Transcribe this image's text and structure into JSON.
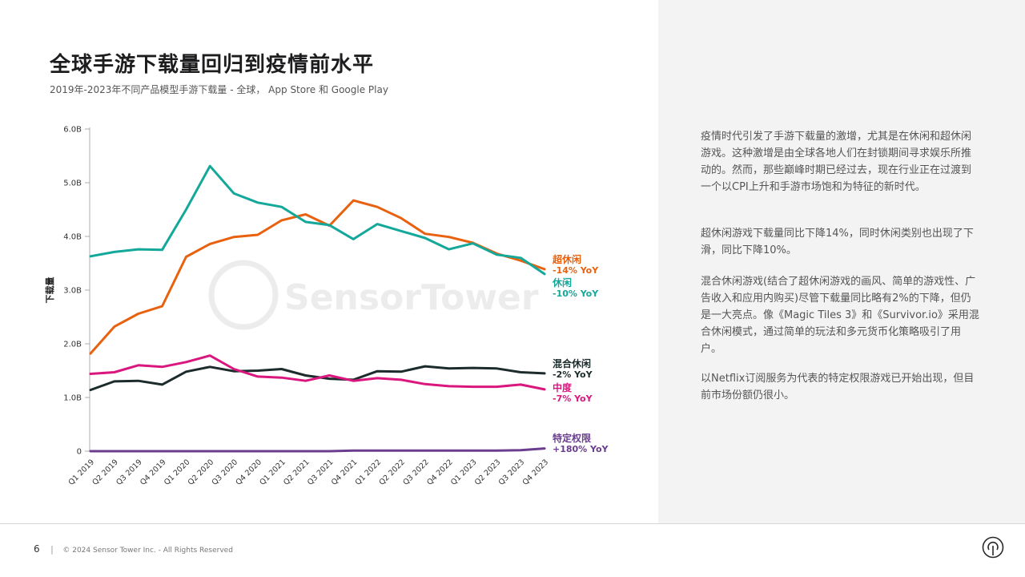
{
  "title": "全球手游下载量回归到疫情前水平",
  "subtitle": "2019年-2023年不同产品模型手游下载量 - 全球， App Store 和 Google Play",
  "watermark": "SensorTower",
  "paragraphs": [
    "疫情时代引发了手游下载量的激增，尤其是在休闲和超休闲游戏。这种激增是由全球各地人们在封锁期间寻求娱乐所推动的。然而，那些巅峰时期已经过去，现在行业正在过渡到一个以CPI上升和手游市场饱和为特征的新时代。",
    "超休闲游戏下载量同比下降14%，同时休闲类别也出现了下滑，同比下降10%。",
    "混合休闲游戏(结合了超休闲游戏的画风、简单的游戏性、广告收入和应用内购买)尽管下载量同比略有2%的下降，但仍是一大亮点。像《Magic Tiles 3》和《Survivor.io》采用混合休闲模式，通过简单的玩法和多元货币化策略吸引了用户。",
    "以Netflix订阅服务为代表的特定权限游戏已开始出现，但目前市场份额仍很小。"
  ],
  "footer": {
    "page": "6",
    "copyright": "© 2024 Sensor Tower Inc. - All Rights Reserved"
  },
  "chart_data": {
    "type": "line",
    "ylabel": "下载量",
    "xlabel": "",
    "ylim": [
      0,
      6
    ],
    "y_ticks": [
      {
        "value": 0,
        "label": "0"
      },
      {
        "value": 1,
        "label": "1.0B"
      },
      {
        "value": 2,
        "label": "2.0B"
      },
      {
        "value": 3,
        "label": "3.0B"
      },
      {
        "value": 4,
        "label": "4.0B"
      },
      {
        "value": 5,
        "label": "5.0B"
      },
      {
        "value": 6,
        "label": "6.0B"
      }
    ],
    "categories": [
      "Q1 2019",
      "Q2 2019",
      "Q3 2019",
      "Q4 2019",
      "Q1 2020",
      "Q2 2020",
      "Q3 2020",
      "Q4 2020",
      "Q1 2021",
      "Q2 2021",
      "Q3 2021",
      "Q4 2021",
      "Q1 2022",
      "Q2 2022",
      "Q3 2022",
      "Q4 2022",
      "Q1 2023",
      "Q2 2023",
      "Q3 2023",
      "Q4 2023"
    ],
    "grid": false,
    "legend": "end-of-line labels",
    "series": [
      {
        "name": "超休闲",
        "yoy": "-14% YoY",
        "color": "#e8610f",
        "values": [
          1.82,
          2.32,
          2.56,
          2.7,
          3.62,
          3.86,
          3.99,
          4.03,
          4.3,
          4.41,
          4.2,
          4.67,
          4.55,
          4.34,
          4.05,
          3.99,
          3.88,
          3.68,
          3.55,
          3.39
        ]
      },
      {
        "name": "休闲",
        "yoy": "-10% YoY",
        "color": "#14a89a",
        "values": [
          3.63,
          3.71,
          3.76,
          3.75,
          4.5,
          5.31,
          4.8,
          4.63,
          4.55,
          4.27,
          4.21,
          3.95,
          4.23,
          4.1,
          3.97,
          3.76,
          3.87,
          3.66,
          3.6,
          3.3
        ]
      },
      {
        "name": "混合休闲",
        "yoy": "-2% YoY",
        "color": "#1c2b2b",
        "values": [
          1.14,
          1.3,
          1.31,
          1.24,
          1.48,
          1.57,
          1.49,
          1.5,
          1.53,
          1.41,
          1.35,
          1.33,
          1.49,
          1.48,
          1.58,
          1.54,
          1.55,
          1.54,
          1.47,
          1.45
        ]
      },
      {
        "name": "中度",
        "yoy": "-7% YoY",
        "color": "#d9177e",
        "values": [
          1.44,
          1.47,
          1.6,
          1.57,
          1.66,
          1.78,
          1.53,
          1.39,
          1.37,
          1.31,
          1.41,
          1.31,
          1.36,
          1.33,
          1.25,
          1.21,
          1.2,
          1.2,
          1.24,
          1.15
        ]
      },
      {
        "name": "特定权限",
        "yoy": "+180% YoY",
        "color": "#6a3d8f",
        "values": [
          0.0,
          0.0,
          0.0,
          0.0,
          0.0,
          0.0,
          0.0,
          0.0,
          0.0,
          0.0,
          0.0,
          0.01,
          0.01,
          0.01,
          0.01,
          0.01,
          0.01,
          0.01,
          0.02,
          0.05
        ]
      }
    ]
  }
}
